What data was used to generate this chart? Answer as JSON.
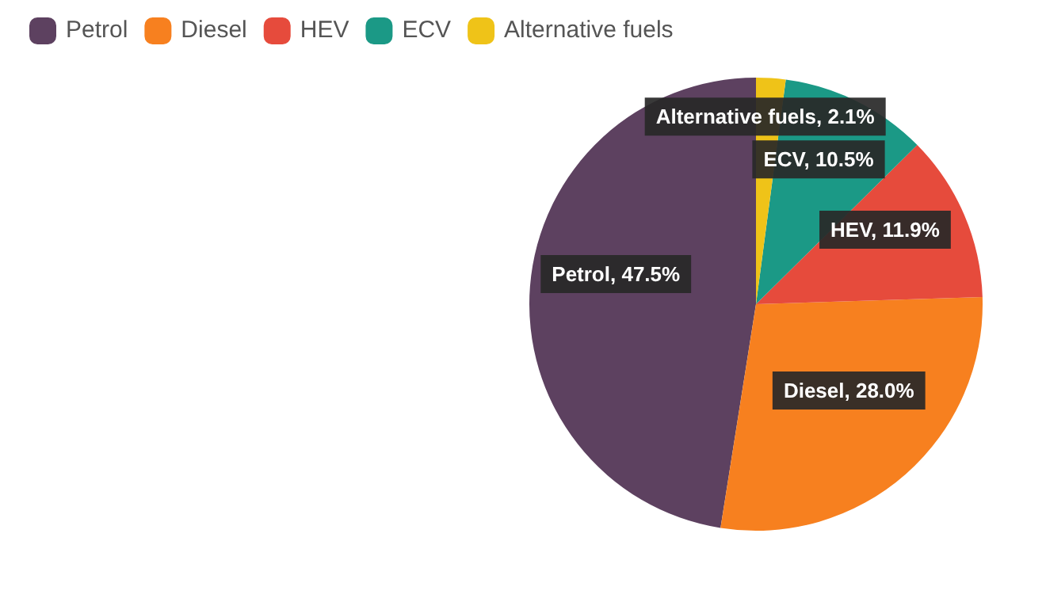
{
  "chart_data": {
    "type": "pie",
    "categories": [
      "Petrol",
      "Diesel",
      "HEV",
      "ECV",
      "Alternative fuels"
    ],
    "values": [
      47.5,
      28.0,
      11.9,
      10.5,
      2.1
    ],
    "value_labels": [
      "Petrol, 47.5%",
      "Diesel, 28.0%",
      "HEV, 11.9%",
      "ECV, 10.5%",
      "Alternative fuels, 2.1%"
    ],
    "colors": [
      "#5d4160",
      "#f7801f",
      "#e64b3c",
      "#1b9986",
      "#efc318"
    ],
    "legend": "top left"
  }
}
